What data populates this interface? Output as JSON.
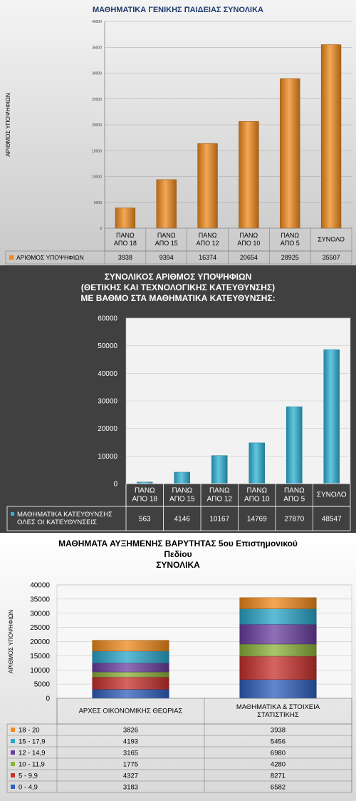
{
  "chart_data": [
    {
      "type": "bar",
      "title": "ΜΑΘΗΜΑΤΙΚΑ ΓΕΝΙΚΗΣ ΠΑΙΔΕΙΑΣ ΣΥΝΟΛΙΚΑ",
      "ylabel": "ΑΡΙΘΜΟΣ ΥΠΟΨΗΦΙΩΝ",
      "ylim": [
        0,
        40000
      ],
      "yticks": [
        "0",
        "5000",
        "10000",
        "15000",
        "20000",
        "25000",
        "30000",
        "35000",
        "40000"
      ],
      "categories": [
        [
          "ΠΑΝΩ",
          "ΑΠΟ 18"
        ],
        [
          "ΠΑΝΩ",
          "ΑΠΟ 15"
        ],
        [
          "ΠΑΝΩ",
          "ΑΠΟ 12"
        ],
        [
          "ΠΑΝΩ",
          "ΑΠΟ 10"
        ],
        [
          "ΠΑΝΩ",
          "ΑΠΟ 5"
        ],
        [
          "ΣΥΝΟΛΟ"
        ]
      ],
      "series": [
        {
          "name": "ΑΡΙΘΜΟΣ ΥΠΟΨΗΦΙΩΝ",
          "values": [
            3938,
            9394,
            16374,
            20654,
            28925,
            35507
          ],
          "color": "#f08a1c"
        }
      ]
    },
    {
      "type": "bar",
      "title": [
        "ΣΥΝΟΛΙΚΟΣ ΑΡΙΘΜΟΣ ΥΠΟΨΗΦΙΩΝ",
        "(ΘΕΤΙΚΗΣ ΚΑΙ ΤΕΧΝΟΛΟΓΙΚΗΣ ΚΑΤΕΥΘΥΝΣΗΣ)",
        "ΜΕ ΒΑΘΜΟ ΣΤΑ ΜΑΘΗΜΑΤΙΚΑ ΚΑΤΕΥΘΥΝΣΗΣ:"
      ],
      "ylim": [
        0,
        60000
      ],
      "yticks": [
        "0",
        "10000",
        "20000",
        "30000",
        "40000",
        "50000",
        "60000"
      ],
      "categories": [
        [
          "ΠΑΝΩ",
          "ΑΠΟ 18"
        ],
        [
          "ΠΑΝΩ",
          "ΑΠΟ 15"
        ],
        [
          "ΠΑΝΩ",
          "ΑΠΟ 12"
        ],
        [
          "ΠΑΝΩ",
          "ΑΠΟ 10"
        ],
        [
          "ΠΑΝΩ",
          "ΑΠΟ 5"
        ],
        [
          "ΣΥΝΟΛΟ"
        ]
      ],
      "series": [
        {
          "name": [
            "ΜΑΘΗΜΑΤΙΚΑ ΚΑΤΕΥΘΥΝΣΗΣ",
            "ΟΛΕΣ ΟΙ ΚΑΤΕΥΘΥΝΣΕΙΣ"
          ],
          "values": [
            563,
            4146,
            10167,
            14769,
            27870,
            48547
          ],
          "color": "#2fb3d6"
        }
      ]
    },
    {
      "type": "bar",
      "stacked": true,
      "title": [
        "ΜΑΘΗΜΑΤΑ ΑΥΞΗΜΕΝΗΣ ΒΑΡΥΤΗΤΑΣ  5ου Επιστημονικού",
        "Πεδίου",
        "ΣΥΝΟΛΙΚΑ"
      ],
      "ylabel": "ΑΡΙΘΜΟΣ ΥΠΟΨΗΦΙΩΝ",
      "ylim": [
        0,
        40000
      ],
      "yticks": [
        "0",
        "5000",
        "10000",
        "15000",
        "20000",
        "25000",
        "30000",
        "35000",
        "40000"
      ],
      "categories": [
        [
          "ΑΡΧΕΣ ΟΙΚΟΝΟΜΙΚΗΣ ΘΕΩΡΙΑΣ"
        ],
        [
          "ΜΑΘΗΜΑΤΙΚΑ & ΣΤΟΙΧΕΙΑ",
          "ΣΤΑΤΙΣΤΙΚΗΣ"
        ]
      ],
      "series": [
        {
          "name": "0  -  4,9",
          "values": [
            3183,
            6582
          ],
          "color": "#2f5fbf"
        },
        {
          "name": "5  -  9,9",
          "values": [
            4327,
            8271
          ],
          "color": "#c8302c"
        },
        {
          "name": "10 - 11,9",
          "values": [
            1775,
            4280
          ],
          "color": "#8db33a"
        },
        {
          "name": "12 - 14,9",
          "values": [
            3165,
            6980
          ],
          "color": "#6b3fa0"
        },
        {
          "name": "15 - 17,9",
          "values": [
            4193,
            5456
          ],
          "color": "#2aa6c9"
        },
        {
          "name": "18  -  20",
          "values": [
            3826,
            3938
          ],
          "color": "#f08a1c"
        }
      ]
    }
  ]
}
